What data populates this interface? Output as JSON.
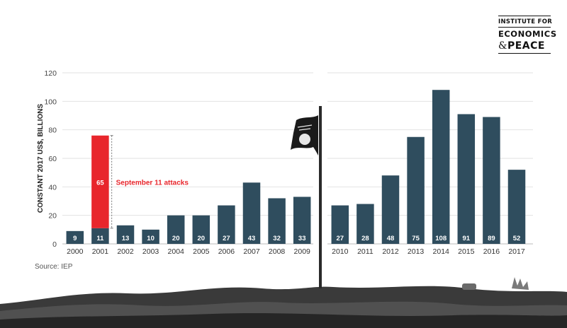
{
  "logo": {
    "line1": "INSTITUTE FOR",
    "line2": "ECONOMICS",
    "line3_amp": "&",
    "line3": "PEACE"
  },
  "source": "Source: IEP",
  "chart_data": {
    "type": "bar",
    "ylabel": "CONSTANT 2017 US$, BILLIONS",
    "ylim": [
      0,
      120
    ],
    "yticks": [
      0,
      20,
      40,
      60,
      80,
      100,
      120
    ],
    "grid": true,
    "categories": [
      "2000",
      "2001",
      "2002",
      "2003",
      "2004",
      "2005",
      "2006",
      "2007",
      "2008",
      "2009",
      "2010",
      "2011",
      "2012",
      "2013",
      "2014",
      "2015",
      "2016",
      "2017"
    ],
    "values": [
      9,
      11,
      13,
      10,
      20,
      20,
      27,
      43,
      32,
      33,
      27,
      28,
      48,
      75,
      108,
      91,
      89,
      52
    ],
    "bar_color": "#2f4d5e",
    "annotation": {
      "category": "2001",
      "increment": 65,
      "color": "#e8262c",
      "label": "September 11 attacks"
    }
  }
}
